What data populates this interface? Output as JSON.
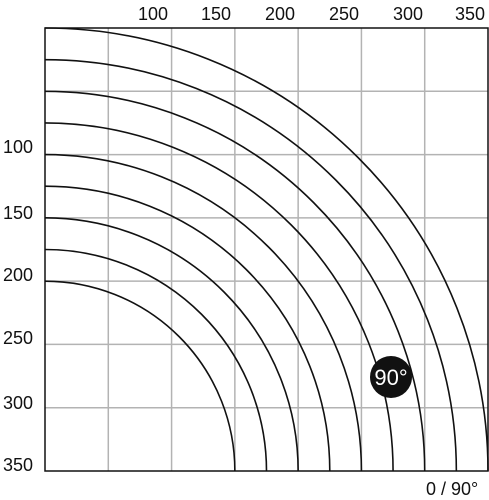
{
  "top_ticks": [
    "100",
    "150",
    "200",
    "250",
    "300",
    "350"
  ],
  "left_ticks": [
    "100",
    "150",
    "200",
    "250",
    "300",
    "350"
  ],
  "corner_label": "0 / 90°",
  "badge_label": "90°",
  "arc_radii": [
    150,
    175,
    200,
    225,
    250,
    275,
    300,
    325,
    350
  ],
  "colors": {
    "grid": "#b3b3b3",
    "curve": "#111111",
    "frame": "#111111",
    "badge": "#111111"
  }
}
